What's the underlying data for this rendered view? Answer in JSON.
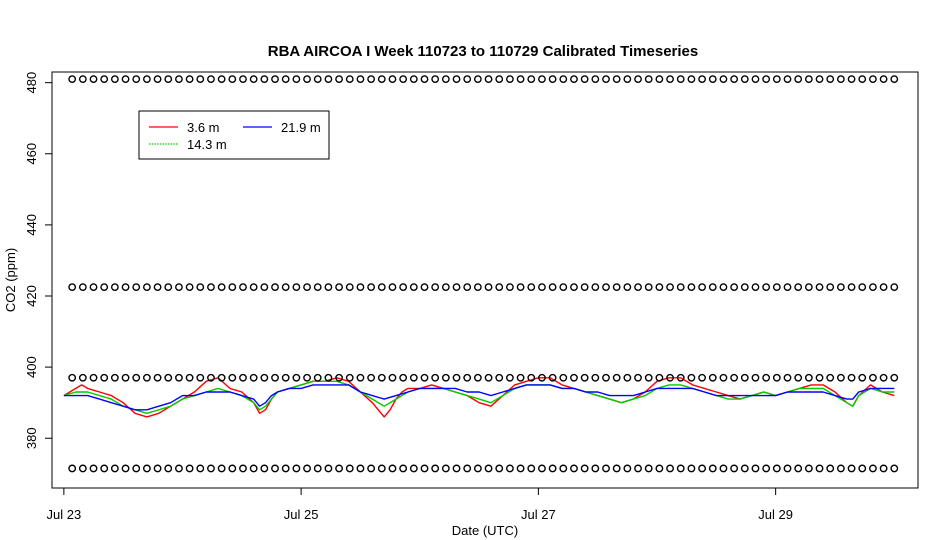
{
  "chart_data": {
    "type": "line",
    "title": "RBA AIRCOA I  Week 110723 to 110729  Calibrated Timeseries",
    "xlabel": "Date (UTC)",
    "ylabel": "CO2 (ppm)",
    "xlim": [
      -0.1,
      7.2
    ],
    "ylim": [
      366,
      483
    ],
    "x_ticks": [
      {
        "value": 0,
        "label": "Jul 23"
      },
      {
        "value": 2,
        "label": "Jul 25"
      },
      {
        "value": 4,
        "label": "Jul 27"
      },
      {
        "value": 6,
        "label": "Jul 29"
      }
    ],
    "y_ticks": [
      380,
      400,
      420,
      440,
      460,
      480
    ],
    "grid": false,
    "legend": {
      "position": "top-left",
      "entries": [
        {
          "name": "3.6 m",
          "color": "#ff0000"
        },
        {
          "name": "14.3 m",
          "color": "#00cc00"
        },
        {
          "name": "21.9 m",
          "color": "#0000ff"
        }
      ]
    },
    "series": [
      {
        "name": "3.6 m",
        "color": "#ff0000",
        "x": [
          0,
          0.05,
          0.1,
          0.15,
          0.2,
          0.3,
          0.4,
          0.5,
          0.6,
          0.7,
          0.8,
          0.9,
          1.0,
          1.1,
          1.2,
          1.3,
          1.4,
          1.5,
          1.6,
          1.65,
          1.7,
          1.75,
          1.8,
          1.9,
          2.0,
          2.1,
          2.2,
          2.3,
          2.4,
          2.5,
          2.6,
          2.7,
          2.75,
          2.8,
          2.85,
          2.9,
          3.0,
          3.1,
          3.2,
          3.3,
          3.4,
          3.5,
          3.6,
          3.7,
          3.8,
          3.9,
          4.0,
          4.1,
          4.2,
          4.3,
          4.4,
          4.5,
          4.6,
          4.7,
          4.8,
          4.9,
          5.0,
          5.1,
          5.2,
          5.3,
          5.4,
          5.5,
          5.6,
          5.7,
          5.8,
          5.9,
          6.0,
          6.1,
          6.2,
          6.3,
          6.4,
          6.5,
          6.6,
          6.65,
          6.7,
          6.8,
          6.9,
          7.0
        ],
        "values": [
          392,
          393,
          394,
          395,
          394,
          393,
          392,
          390,
          387,
          386,
          387,
          389,
          391,
          393,
          396,
          397,
          394,
          393,
          390,
          387,
          388,
          391,
          393,
          394,
          395,
          396,
          396,
          397,
          396,
          393,
          390,
          386,
          388,
          391,
          393,
          394,
          394,
          395,
          394,
          393,
          392,
          390,
          389,
          392,
          395,
          396,
          397,
          397,
          395,
          394,
          393,
          392,
          391,
          390,
          391,
          393,
          396,
          397,
          397,
          395,
          394,
          393,
          392,
          391,
          392,
          393,
          392,
          393,
          394,
          395,
          395,
          393,
          390,
          389,
          392,
          395,
          393,
          392
        ]
      },
      {
        "name": "14.3 m",
        "color": "#00cc00",
        "x": [
          0,
          0.1,
          0.2,
          0.3,
          0.4,
          0.5,
          0.6,
          0.7,
          0.8,
          0.9,
          1.0,
          1.1,
          1.2,
          1.3,
          1.4,
          1.5,
          1.6,
          1.65,
          1.7,
          1.75,
          1.8,
          1.9,
          2.0,
          2.1,
          2.2,
          2.3,
          2.4,
          2.5,
          2.6,
          2.7,
          2.8,
          2.9,
          3.0,
          3.1,
          3.2,
          3.3,
          3.4,
          3.5,
          3.6,
          3.7,
          3.8,
          3.9,
          4.0,
          4.1,
          4.2,
          4.3,
          4.4,
          4.5,
          4.6,
          4.7,
          4.8,
          4.9,
          5.0,
          5.1,
          5.2,
          5.3,
          5.4,
          5.5,
          5.6,
          5.7,
          5.8,
          5.9,
          6.0,
          6.1,
          6.2,
          6.3,
          6.4,
          6.5,
          6.6,
          6.65,
          6.7,
          6.8,
          6.9,
          7.0
        ],
        "values": [
          392,
          393,
          393,
          392,
          391,
          389,
          388,
          387,
          388,
          389,
          391,
          392,
          393,
          394,
          393,
          392,
          390,
          388,
          389,
          391,
          393,
          394,
          395,
          396,
          396,
          396,
          395,
          393,
          391,
          389,
          391,
          393,
          394,
          394,
          394,
          393,
          392,
          391,
          390,
          392,
          394,
          395,
          395,
          395,
          394,
          394,
          393,
          392,
          391,
          390,
          391,
          392,
          394,
          395,
          395,
          394,
          393,
          392,
          391,
          391,
          392,
          393,
          392,
          393,
          394,
          394,
          394,
          392,
          390,
          389,
          392,
          394,
          393,
          393
        ]
      },
      {
        "name": "21.9 m",
        "color": "#0000ff",
        "x": [
          0,
          0.1,
          0.2,
          0.3,
          0.4,
          0.5,
          0.6,
          0.7,
          0.8,
          0.9,
          1.0,
          1.1,
          1.2,
          1.3,
          1.4,
          1.5,
          1.6,
          1.65,
          1.7,
          1.75,
          1.8,
          1.9,
          2.0,
          2.1,
          2.2,
          2.3,
          2.4,
          2.5,
          2.6,
          2.7,
          2.8,
          2.9,
          3.0,
          3.1,
          3.2,
          3.3,
          3.4,
          3.5,
          3.6,
          3.7,
          3.8,
          3.9,
          4.0,
          4.1,
          4.2,
          4.3,
          4.4,
          4.5,
          4.6,
          4.7,
          4.8,
          4.9,
          5.0,
          5.1,
          5.2,
          5.3,
          5.4,
          5.5,
          5.6,
          5.7,
          5.8,
          5.9,
          6.0,
          6.1,
          6.2,
          6.3,
          6.4,
          6.5,
          6.6,
          6.65,
          6.7,
          6.8,
          6.9,
          7.0
        ],
        "values": [
          392,
          392,
          392,
          391,
          390,
          389,
          388,
          388,
          389,
          390,
          392,
          392,
          393,
          393,
          393,
          392,
          391,
          389,
          390,
          392,
          393,
          394,
          394,
          395,
          395,
          395,
          395,
          393,
          392,
          391,
          392,
          393,
          394,
          394,
          394,
          394,
          393,
          393,
          392,
          393,
          394,
          395,
          395,
          395,
          394,
          394,
          393,
          393,
          392,
          392,
          392,
          393,
          394,
          394,
          394,
          394,
          393,
          392,
          392,
          392,
          392,
          392,
          392,
          393,
          393,
          393,
          393,
          392,
          391,
          391,
          393,
          394,
          394,
          394
        ]
      },
      {
        "name": "",
        "style": "open-circle",
        "color": "#000000",
        "x": [
          0.07,
          0.16,
          0.25,
          0.34,
          0.43,
          0.52,
          0.61,
          0.7,
          0.79,
          0.88,
          0.97,
          1.06,
          1.15,
          1.24,
          1.33,
          1.42,
          1.51,
          1.6,
          1.69,
          1.78,
          1.87,
          1.96,
          2.05,
          2.14,
          2.23,
          2.32,
          2.41,
          2.5,
          2.59,
          2.68,
          2.77,
          2.86,
          2.95,
          3.04,
          3.13,
          3.22,
          3.31,
          3.4,
          3.49,
          3.58,
          3.67,
          3.76,
          3.85,
          3.94,
          4.03,
          4.12,
          4.21,
          4.3,
          4.39,
          4.48,
          4.57,
          4.66,
          4.75,
          4.84,
          4.93,
          5.02,
          5.11,
          5.2,
          5.29,
          5.38,
          5.47,
          5.56,
          5.65,
          5.74,
          5.83,
          5.92,
          6.01,
          6.1,
          6.19,
          6.28,
          6.37,
          6.46,
          6.55,
          6.64,
          6.73,
          6.82,
          6.91,
          7.0
        ],
        "values": [
          481,
          481,
          481,
          481,
          481,
          481,
          481,
          481,
          481,
          481,
          481,
          481,
          481,
          481,
          481,
          481,
          481,
          481,
          481,
          481,
          481,
          481,
          481,
          481,
          481,
          481,
          481,
          481,
          481,
          481,
          481,
          481,
          481,
          481,
          481,
          481,
          481,
          481,
          481,
          481,
          481,
          481,
          481,
          481,
          481,
          481,
          481,
          481,
          481,
          481,
          481,
          481,
          481,
          481,
          481,
          481,
          481,
          481,
          481,
          481,
          481,
          481,
          481,
          481,
          481,
          481,
          481,
          481,
          481,
          481,
          481,
          481,
          481,
          481,
          481,
          481,
          481,
          481
        ]
      },
      {
        "name": "",
        "style": "open-circle",
        "color": "#000000",
        "x": [
          0.07,
          0.16,
          0.25,
          0.34,
          0.43,
          0.52,
          0.61,
          0.7,
          0.79,
          0.88,
          0.97,
          1.06,
          1.15,
          1.24,
          1.33,
          1.42,
          1.51,
          1.6,
          1.69,
          1.78,
          1.87,
          1.96,
          2.05,
          2.14,
          2.23,
          2.32,
          2.41,
          2.5,
          2.59,
          2.68,
          2.77,
          2.86,
          2.95,
          3.04,
          3.13,
          3.22,
          3.31,
          3.4,
          3.49,
          3.58,
          3.67,
          3.76,
          3.85,
          3.94,
          4.03,
          4.12,
          4.21,
          4.3,
          4.39,
          4.48,
          4.57,
          4.66,
          4.75,
          4.84,
          4.93,
          5.02,
          5.11,
          5.2,
          5.29,
          5.38,
          5.47,
          5.56,
          5.65,
          5.74,
          5.83,
          5.92,
          6.01,
          6.1,
          6.19,
          6.28,
          6.37,
          6.46,
          6.55,
          6.64,
          6.73,
          6.82,
          6.91,
          7.0
        ],
        "values": [
          422.5,
          422.5,
          422.5,
          422.5,
          422.5,
          422.5,
          422.5,
          422.5,
          422.5,
          422.5,
          422.5,
          422.5,
          422.5,
          422.5,
          422.5,
          422.5,
          422.5,
          422.5,
          422.5,
          422.5,
          422.5,
          422.5,
          422.5,
          422.5,
          422.5,
          422.5,
          422.5,
          422.5,
          422.5,
          422.5,
          422.5,
          422.5,
          422.5,
          422.5,
          422.5,
          422.5,
          422.5,
          422.5,
          422.5,
          422.5,
          422.5,
          422.5,
          422.5,
          422.5,
          422.5,
          422.5,
          422.5,
          422.5,
          422.5,
          422.5,
          422.5,
          422.5,
          422.5,
          422.5,
          422.5,
          422.5,
          422.5,
          422.5,
          422.5,
          422.5,
          422.5,
          422.5,
          422.5,
          422.5,
          422.5,
          422.5,
          422.5,
          422.5,
          422.5,
          422.5,
          422.5,
          422.5,
          422.5,
          422.5,
          422.5,
          422.5,
          422.5,
          422.5
        ]
      },
      {
        "name": "",
        "style": "open-circle",
        "color": "#000000",
        "x": [
          0.07,
          0.16,
          0.25,
          0.34,
          0.43,
          0.52,
          0.61,
          0.7,
          0.79,
          0.88,
          0.97,
          1.06,
          1.15,
          1.24,
          1.33,
          1.42,
          1.51,
          1.6,
          1.69,
          1.78,
          1.87,
          1.96,
          2.05,
          2.14,
          2.23,
          2.32,
          2.41,
          2.5,
          2.59,
          2.68,
          2.77,
          2.86,
          2.95,
          3.04,
          3.13,
          3.22,
          3.31,
          3.4,
          3.49,
          3.58,
          3.67,
          3.76,
          3.85,
          3.94,
          4.03,
          4.12,
          4.21,
          4.3,
          4.39,
          4.48,
          4.57,
          4.66,
          4.75,
          4.84,
          4.93,
          5.02,
          5.11,
          5.2,
          5.29,
          5.38,
          5.47,
          5.56,
          5.65,
          5.74,
          5.83,
          5.92,
          6.01,
          6.1,
          6.19,
          6.28,
          6.37,
          6.46,
          6.55,
          6.64,
          6.73,
          6.82,
          6.91,
          7.0
        ],
        "values": [
          397,
          397,
          397,
          397,
          397,
          397,
          397,
          397,
          397,
          397,
          397,
          397,
          397,
          397,
          397,
          397,
          397,
          397,
          397,
          397,
          397,
          397,
          397,
          397,
          397,
          397,
          397,
          397,
          397,
          397,
          397,
          397,
          397,
          397,
          397,
          397,
          397,
          397,
          397,
          397,
          397,
          397,
          397,
          397,
          397,
          397,
          397,
          397,
          397,
          397,
          397,
          397,
          397,
          397,
          397,
          397,
          397,
          397,
          397,
          397,
          397,
          397,
          397,
          397,
          397,
          397,
          397,
          397,
          397,
          397,
          397,
          397,
          397,
          397,
          397,
          397,
          397,
          397
        ]
      },
      {
        "name": "",
        "style": "open-circle",
        "color": "#000000",
        "x": [
          0.07,
          0.16,
          0.25,
          0.34,
          0.43,
          0.52,
          0.61,
          0.7,
          0.79,
          0.88,
          0.97,
          1.06,
          1.15,
          1.24,
          1.33,
          1.42,
          1.51,
          1.6,
          1.69,
          1.78,
          1.87,
          1.96,
          2.05,
          2.14,
          2.23,
          2.32,
          2.41,
          2.5,
          2.59,
          2.68,
          2.77,
          2.86,
          2.95,
          3.04,
          3.13,
          3.22,
          3.31,
          3.4,
          3.49,
          3.58,
          3.67,
          3.76,
          3.85,
          3.94,
          4.03,
          4.12,
          4.21,
          4.3,
          4.39,
          4.48,
          4.57,
          4.66,
          4.75,
          4.84,
          4.93,
          5.02,
          5.11,
          5.2,
          5.29,
          5.38,
          5.47,
          5.56,
          5.65,
          5.74,
          5.83,
          5.92,
          6.01,
          6.1,
          6.19,
          6.28,
          6.37,
          6.46,
          6.55,
          6.64,
          6.73,
          6.82,
          6.91,
          7.0
        ],
        "values": [
          371.5,
          371.5,
          371.5,
          371.5,
          371.5,
          371.5,
          371.5,
          371.5,
          371.5,
          371.5,
          371.5,
          371.5,
          371.5,
          371.5,
          371.5,
          371.5,
          371.5,
          371.5,
          371.5,
          371.5,
          371.5,
          371.5,
          371.5,
          371.5,
          371.5,
          371.5,
          371.5,
          371.5,
          371.5,
          371.5,
          371.5,
          371.5,
          371.5,
          371.5,
          371.5,
          371.5,
          371.5,
          371.5,
          371.5,
          371.5,
          371.5,
          371.5,
          371.5,
          371.5,
          371.5,
          371.5,
          371.5,
          371.5,
          371.5,
          371.5,
          371.5,
          371.5,
          371.5,
          371.5,
          371.5,
          371.5,
          371.5,
          371.5,
          371.5,
          371.5,
          371.5,
          371.5,
          371.5,
          371.5,
          371.5,
          371.5,
          371.5,
          371.5,
          371.5,
          371.5,
          371.5,
          371.5,
          371.5,
          371.5,
          371.5,
          371.5,
          371.5,
          371.5
        ]
      }
    ]
  }
}
